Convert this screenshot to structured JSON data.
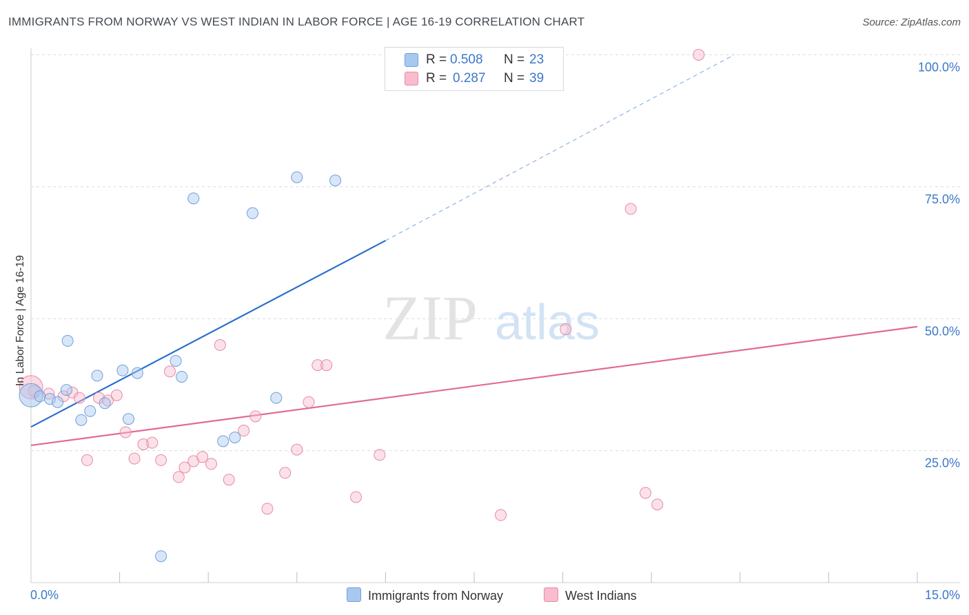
{
  "chart_data": {
    "type": "scatter",
    "title": "IMMIGRANTS FROM NORWAY VS WEST INDIAN IN LABOR FORCE | AGE 16-19 CORRELATION CHART",
    "source": "Source: ZipAtlas.com",
    "xlabel": "",
    "ylabel": "In Labor Force | Age 16-19",
    "xlim": [
      0,
      15
    ],
    "ylim": [
      0,
      102.5
    ],
    "x_tick_labels": [
      "0.0%",
      "15.0%"
    ],
    "y_ticks": [
      25,
      50,
      75,
      100
    ],
    "y_tick_labels": [
      "25.0%",
      "50.0%",
      "75.0%",
      "100.0%"
    ],
    "watermark": "ZIPatlas",
    "legend": [
      {
        "r_label": "R =",
        "r_value": "0.508",
        "n_label": "N =",
        "n_value": "23"
      },
      {
        "r_label": "R =",
        "r_value": "0.287",
        "n_label": "N =",
        "n_value": "39"
      }
    ],
    "series": [
      {
        "name": "Immigrants from Norway",
        "color": "#a9c8ef",
        "stroke": "#6d9fdc",
        "line_color": "#2b6fcc",
        "trend": {
          "x0": 0,
          "y0": 29.5,
          "x1": 6.0,
          "y1": 64.8,
          "x_dash_end": 11.9,
          "y_dash_end": 100.0
        },
        "points": [
          [
            0.0,
            35.5
          ],
          [
            0.15,
            35.3
          ],
          [
            0.32,
            34.8
          ],
          [
            0.45,
            34.2
          ],
          [
            0.6,
            36.5
          ],
          [
            0.62,
            45.8
          ],
          [
            0.85,
            30.8
          ],
          [
            1.0,
            32.5
          ],
          [
            1.12,
            39.2
          ],
          [
            1.25,
            34.0
          ],
          [
            1.55,
            40.2
          ],
          [
            1.65,
            31.0
          ],
          [
            1.8,
            39.7
          ],
          [
            2.2,
            5.0
          ],
          [
            2.45,
            42.0
          ],
          [
            2.55,
            39.0
          ],
          [
            2.75,
            72.8
          ],
          [
            3.25,
            26.8
          ],
          [
            3.45,
            27.5
          ],
          [
            3.75,
            70.0
          ],
          [
            4.15,
            35.0
          ],
          [
            4.5,
            76.8
          ],
          [
            5.15,
            76.2
          ]
        ]
      },
      {
        "name": "West Indians",
        "color": "#f7bccd",
        "stroke": "#e889a5",
        "line_color": "#e06a95",
        "trend": {
          "x0": 0,
          "y0": 26.0,
          "x1": 15.0,
          "y1": 48.5
        },
        "points": [
          [
            0.0,
            37.0
          ],
          [
            0.3,
            35.8
          ],
          [
            0.55,
            35.3
          ],
          [
            0.7,
            36.0
          ],
          [
            0.82,
            35.0
          ],
          [
            0.95,
            23.2
          ],
          [
            1.15,
            35.0
          ],
          [
            1.3,
            34.5
          ],
          [
            1.45,
            35.5
          ],
          [
            1.6,
            28.5
          ],
          [
            1.75,
            23.5
          ],
          [
            1.9,
            26.2
          ],
          [
            2.05,
            26.5
          ],
          [
            2.2,
            23.2
          ],
          [
            2.35,
            40.0
          ],
          [
            2.5,
            20.0
          ],
          [
            2.6,
            21.8
          ],
          [
            2.75,
            23.0
          ],
          [
            2.9,
            23.8
          ],
          [
            3.05,
            22.5
          ],
          [
            3.2,
            45.0
          ],
          [
            3.35,
            19.5
          ],
          [
            3.6,
            28.8
          ],
          [
            3.8,
            31.5
          ],
          [
            4.0,
            14.0
          ],
          [
            4.3,
            20.8
          ],
          [
            4.5,
            25.2
          ],
          [
            4.7,
            34.2
          ],
          [
            4.85,
            41.2
          ],
          [
            5.0,
            41.2
          ],
          [
            5.5,
            16.2
          ],
          [
            5.9,
            24.2
          ],
          [
            7.95,
            12.8
          ],
          [
            9.05,
            48.0
          ],
          [
            10.15,
            70.8
          ],
          [
            10.4,
            17.0
          ],
          [
            10.6,
            14.8
          ],
          [
            11.3,
            100.0
          ],
          [
            0.05,
            36.3
          ]
        ]
      }
    ]
  }
}
